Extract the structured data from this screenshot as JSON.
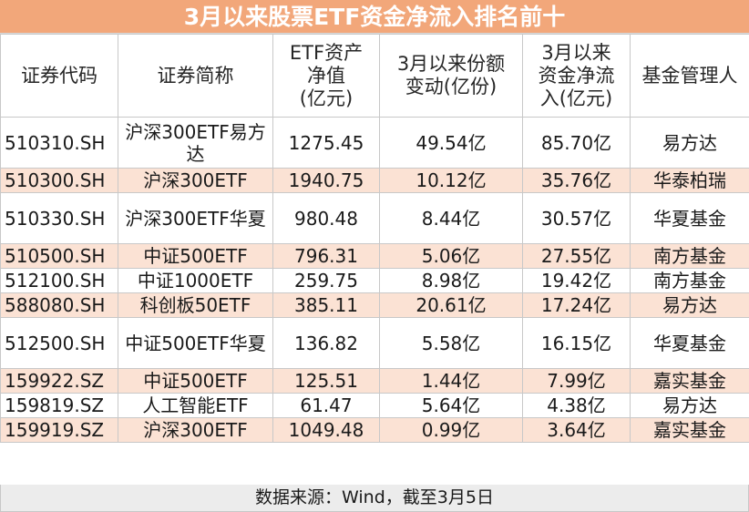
{
  "title": "3月以来股票ETF资金净流入排名前十",
  "headers": {
    "code": "证券代码",
    "name": "证券简称",
    "nav": "ETF资产\n净值\n(亿元)",
    "share_change": "3月以来份额\n变动(亿份)",
    "net_inflow": "3月以来\n资金净流\n入(亿元)",
    "manager": "基金管理人"
  },
  "rows": [
    {
      "code": "510310.SH",
      "name": "沪深300ETF易方达",
      "nav": "1275.45",
      "share_change": "49.54亿",
      "net_inflow": "85.70亿",
      "manager": "易方达"
    },
    {
      "code": "510300.SH",
      "name": "沪深300ETF",
      "nav": "1940.75",
      "share_change": "10.12亿",
      "net_inflow": "35.76亿",
      "manager": "华泰柏瑞"
    },
    {
      "code": "510330.SH",
      "name": "沪深300ETF华夏",
      "nav": "980.48",
      "share_change": "8.44亿",
      "net_inflow": "30.57亿",
      "manager": "华夏基金"
    },
    {
      "code": "510500.SH",
      "name": "中证500ETF",
      "nav": "796.31",
      "share_change": "5.06亿",
      "net_inflow": "27.55亿",
      "manager": "南方基金"
    },
    {
      "code": "512100.SH",
      "name": "中证1000ETF",
      "nav": "259.75",
      "share_change": "8.98亿",
      "net_inflow": "19.42亿",
      "manager": "南方基金"
    },
    {
      "code": "588080.SH",
      "name": "科创板50ETF",
      "nav": "385.11",
      "share_change": "20.61亿",
      "net_inflow": "17.24亿",
      "manager": "易方达"
    },
    {
      "code": "512500.SH",
      "name": "中证500ETF华夏",
      "nav": "136.82",
      "share_change": "5.58亿",
      "net_inflow": "16.15亿",
      "manager": "华夏基金"
    },
    {
      "code": "159922.SZ",
      "name": "中证500ETF",
      "nav": "125.51",
      "share_change": "1.44亿",
      "net_inflow": "7.99亿",
      "manager": "嘉实基金"
    },
    {
      "code": "159819.SZ",
      "name": "人工智能ETF",
      "nav": "61.47",
      "share_change": "5.64亿",
      "net_inflow": "4.38亿",
      "manager": "易方达"
    },
    {
      "code": "159919.SZ",
      "name": "沪深300ETF",
      "nav": "1049.48",
      "share_change": "0.99亿",
      "net_inflow": "3.64亿",
      "manager": "嘉实基金"
    }
  ],
  "footer": "数据来源：Wind，截至3月5日",
  "colors": {
    "title_bg": "#f2a77a",
    "title_text": "#ffffff",
    "stripe": "#fbe2d4",
    "footer_bg": "#ececec"
  }
}
